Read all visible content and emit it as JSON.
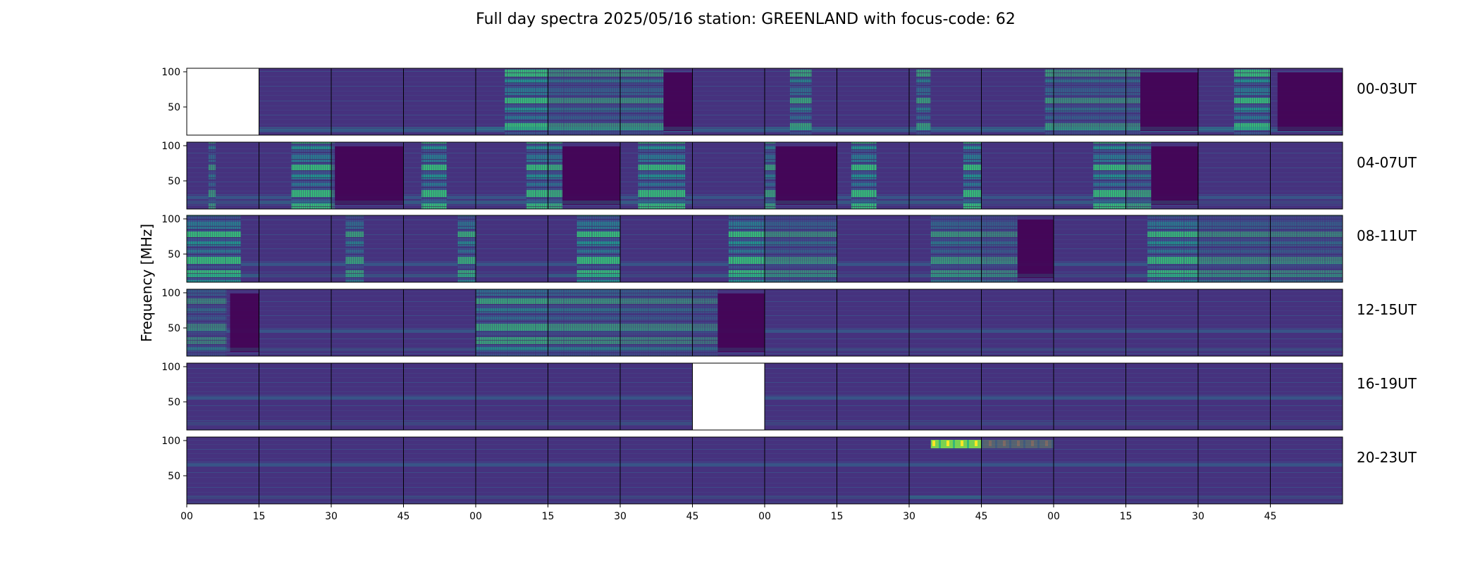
{
  "title": "Full day spectra 2025/05/16 station: GREENLAND with focus-code: 62",
  "colors": {
    "colormap": "viridis",
    "background": "#ffffff",
    "frame": "#000000"
  },
  "chart_data": {
    "type": "heatmap",
    "title": "Full day spectra 2025/05/16 station: GREENLAND with focus-code: 62",
    "ylabel": "Frequency [MHz]",
    "xlabel": "",
    "ylim": [
      10,
      105
    ],
    "yticks": [
      "100",
      "50"
    ],
    "xticks": [
      "00",
      "15",
      "30",
      "45",
      "00",
      "15",
      "30",
      "45",
      "00",
      "15",
      "30",
      "45",
      "00",
      "15",
      "30",
      "45"
    ],
    "grid": false,
    "rows": [
      {
        "label": "00-03UT",
        "panels": [
          {
            "empty": true
          },
          {
            "burst": 0.1,
            "band": null
          },
          {
            "burst": 0.15,
            "band": null
          },
          {
            "burst": 0.15,
            "band": null
          },
          {
            "burst": 0.95,
            "band": [
              0.4,
              1.0
            ]
          },
          {
            "burst": 0.35,
            "band": [
              0.0,
              1.0
            ]
          },
          {
            "burst": 0.4,
            "band": [
              0.0,
              0.6
            ],
            "dark": [
              0.6,
              1.0
            ]
          },
          {
            "burst": 0.1,
            "band": null
          },
          {
            "burst": 0.55,
            "band": [
              0.35,
              0.65
            ]
          },
          {
            "burst": 0.1,
            "band": null
          },
          {
            "burst": 0.5,
            "band": [
              0.1,
              0.3
            ]
          },
          {
            "burst": 0.5,
            "band": [
              0.88,
              1.0
            ]
          },
          {
            "burst": 0.35,
            "band": [
              0.0,
              1.0
            ]
          },
          {
            "burst": 0.3,
            "band": [
              0.0,
              0.2
            ],
            "dark": [
              0.2,
              1.0
            ]
          },
          {
            "burst": 0.95,
            "band": [
              0.5,
              1.0
            ]
          },
          {
            "burst": 0.1,
            "band": null,
            "dark": [
              0.1,
              1.0
            ]
          }
        ]
      },
      {
        "label": "04-07UT",
        "panels": [
          {
            "burst": 0.4,
            "band": [
              0.3,
              0.4
            ]
          },
          {
            "burst": 0.85,
            "band": [
              0.45,
              1.0
            ]
          },
          {
            "burst": 0.2,
            "band": [
              0.0,
              0.05
            ],
            "dark": [
              0.05,
              1.0
            ]
          },
          {
            "burst": 0.85,
            "band": [
              0.25,
              0.6
            ]
          },
          {
            "burst": 0.85,
            "band": [
              0.7,
              1.0
            ]
          },
          {
            "burst": 0.6,
            "band": [
              0.0,
              0.2
            ],
            "dark": [
              0.2,
              1.0
            ]
          },
          {
            "burst": 0.9,
            "band": [
              0.25,
              0.9
            ]
          },
          {
            "burst": 0.1,
            "band": null
          },
          {
            "burst": 0.5,
            "band": [
              0.0,
              0.15
            ],
            "dark": [
              0.15,
              1.0
            ]
          },
          {
            "burst": 0.75,
            "band": [
              0.2,
              0.55
            ]
          },
          {
            "burst": 0.75,
            "band": [
              0.75,
              1.0
            ]
          },
          {
            "burst": 0.15,
            "band": null
          },
          {
            "burst": 0.85,
            "band": [
              0.55,
              1.0
            ]
          },
          {
            "burst": 0.5,
            "band": [
              0.0,
              0.35
            ],
            "dark": [
              0.35,
              1.0
            ]
          },
          {
            "burst": 0.1,
            "band": null
          },
          {
            "burst": 0.1,
            "band": null
          }
        ]
      },
      {
        "label": "08-11UT",
        "panels": [
          {
            "burst": 0.85,
            "band": [
              0.0,
              0.75
            ]
          },
          {
            "burst": 0.1,
            "band": null
          },
          {
            "burst": 0.5,
            "band": [
              0.2,
              0.45
            ]
          },
          {
            "burst": 0.6,
            "band": [
              0.75,
              1.0
            ]
          },
          {
            "burst": 0.15,
            "band": null
          },
          {
            "burst": 0.85,
            "band": [
              0.4,
              1.0
            ]
          },
          {
            "burst": 0.1,
            "band": null
          },
          {
            "burst": 0.75,
            "band": [
              0.5,
              1.0
            ]
          },
          {
            "burst": 0.35,
            "band": [
              0.0,
              1.0
            ]
          },
          {
            "burst": 0.1,
            "band": null
          },
          {
            "burst": 0.45,
            "band": [
              0.3,
              1.0
            ]
          },
          {
            "burst": 0.3,
            "band": [
              0.0,
              0.5
            ],
            "dark": [
              0.5,
              1.0
            ]
          },
          {
            "burst": 0.1,
            "band": null
          },
          {
            "burst": 0.7,
            "band": [
              0.3,
              1.0
            ]
          },
          {
            "burst": 0.35,
            "band": [
              0.0,
              1.0
            ]
          },
          {
            "burst": 0.3,
            "band": [
              0.0,
              1.0
            ]
          }
        ]
      },
      {
        "label": "12-15UT",
        "panels": [
          {
            "burst": 0.3,
            "band": [
              0.0,
              0.55
            ],
            "dark": [
              0.6,
              1.0
            ]
          },
          {
            "burst": 0.1,
            "band": null
          },
          {
            "burst": 0.12,
            "band": null
          },
          {
            "burst": 0.2,
            "band": null
          },
          {
            "burst": 0.55,
            "band": [
              0.0,
              1.0
            ]
          },
          {
            "burst": 0.4,
            "band": [
              0.0,
              1.0
            ]
          },
          {
            "burst": 0.3,
            "band": [
              0.0,
              1.0
            ]
          },
          {
            "burst": 0.2,
            "band": [
              0.0,
              0.35
            ],
            "dark": [
              0.35,
              1.0
            ]
          },
          {
            "burst": 0.15,
            "band": null
          },
          {
            "burst": 0.1,
            "band": null
          },
          {
            "burst": 0.12,
            "band": null
          },
          {
            "burst": 0.15,
            "band": null
          },
          {
            "burst": 0.15,
            "band": null
          },
          {
            "burst": 0.15,
            "band": null
          },
          {
            "burst": 0.1,
            "band": null
          },
          {
            "burst": 0.15,
            "band": null
          }
        ]
      },
      {
        "label": "16-19UT",
        "panels": [
          {
            "burst": 0.15,
            "band": null
          },
          {
            "burst": 0.25,
            "band": null
          },
          {
            "burst": 0.12,
            "band": null
          },
          {
            "burst": 0.2,
            "band": null
          },
          {
            "burst": 0.15,
            "band": null
          },
          {
            "burst": 0.3,
            "band": null
          },
          {
            "burst": 0.45,
            "band": null
          },
          {
            "empty": true
          },
          {
            "burst": 0.12,
            "band": null
          },
          {
            "burst": 0.12,
            "band": null
          },
          {
            "burst": 0.15,
            "band": null
          },
          {
            "burst": 0.2,
            "band": null
          },
          {
            "burst": 0.12,
            "band": null
          },
          {
            "burst": 0.12,
            "band": null
          },
          {
            "burst": 0.12,
            "band": null
          },
          {
            "burst": 0.1,
            "band": null
          }
        ]
      },
      {
        "label": "20-23UT",
        "panels": [
          {
            "burst": 0.1,
            "band": null
          },
          {
            "burst": 0.1,
            "band": null
          },
          {
            "burst": 0.1,
            "band": null
          },
          {
            "burst": 0.15,
            "band": null
          },
          {
            "burst": 0.1,
            "band": null
          },
          {
            "burst": 0.1,
            "band": null
          },
          {
            "burst": 0.1,
            "band": null
          },
          {
            "burst": 0.1,
            "band": null
          },
          {
            "burst": 0.1,
            "band": null
          },
          {
            "burst": 0.1,
            "band": null
          },
          {
            "burst": 1.0,
            "band": [
              0.3,
              1.0
            ],
            "top_only": true
          },
          {
            "burst": 0.3,
            "band": [
              0.0,
              1.0
            ],
            "top_only": true
          },
          {
            "burst": 0.15,
            "band": null
          },
          {
            "burst": 0.1,
            "band": null
          },
          {
            "burst": 0.1,
            "band": null
          },
          {
            "burst": 0.1,
            "band": null
          }
        ]
      }
    ]
  }
}
